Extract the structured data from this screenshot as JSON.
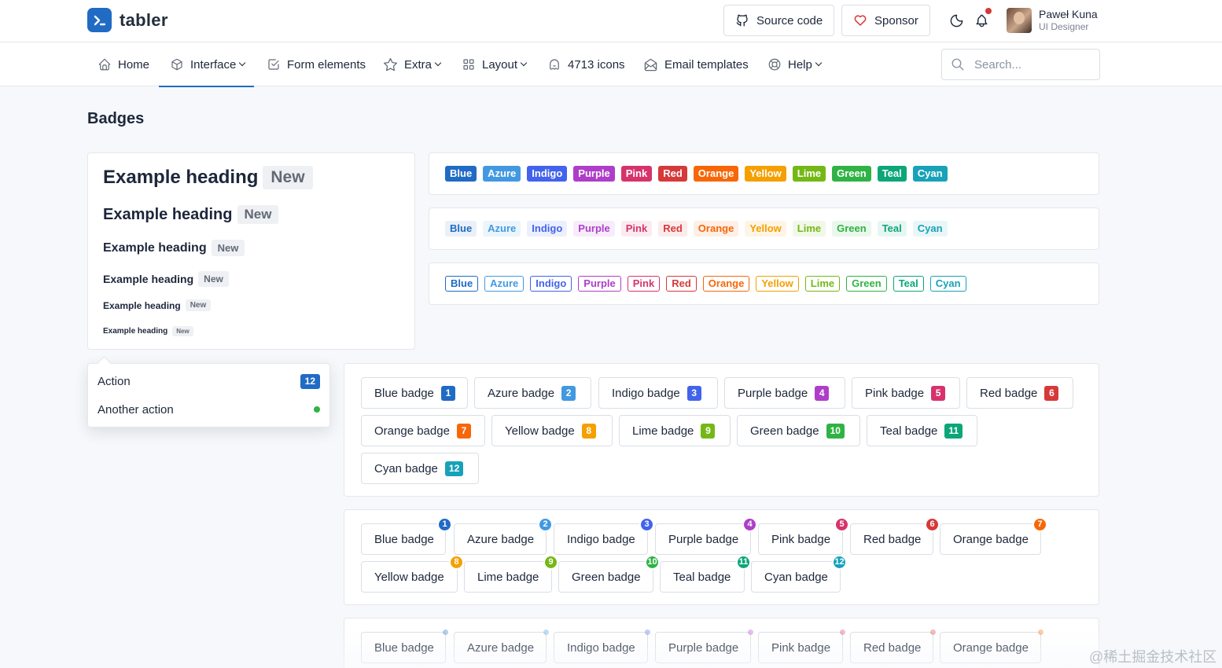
{
  "brand": {
    "name": "tabler"
  },
  "header": {
    "source_code": "Source code",
    "sponsor": "Sponsor",
    "user": {
      "name": "Paweł Kuna",
      "role": "UI Designer"
    }
  },
  "nav": {
    "items": [
      {
        "label": "Home"
      },
      {
        "label": "Interface"
      },
      {
        "label": "Form elements"
      },
      {
        "label": "Extra"
      },
      {
        "label": "Layout"
      },
      {
        "label": "4713 icons"
      },
      {
        "label": "Email templates"
      },
      {
        "label": "Help"
      }
    ],
    "search_placeholder": "Search..."
  },
  "page_title": "Badges",
  "headings": [
    {
      "text": "Example heading",
      "badge": "New"
    },
    {
      "text": "Example heading",
      "badge": "New"
    },
    {
      "text": "Example heading",
      "badge": "New"
    },
    {
      "text": "Example heading",
      "badge": "New"
    },
    {
      "text": "Example heading",
      "badge": "New"
    },
    {
      "text": "Example heading",
      "badge": "New"
    }
  ],
  "colors": [
    {
      "name": "Blue",
      "hex": "#206bc4",
      "light": "#e9f0f9"
    },
    {
      "name": "Azure",
      "hex": "#4299e1",
      "light": "#ecf5fc"
    },
    {
      "name": "Indigo",
      "hex": "#4263eb",
      "light": "#eceffd"
    },
    {
      "name": "Purple",
      "hex": "#ae3ec9",
      "light": "#f7ecfa"
    },
    {
      "name": "Pink",
      "hex": "#d6336c",
      "light": "#fbebf0"
    },
    {
      "name": "Red",
      "hex": "#d63939",
      "light": "#fbebeb"
    },
    {
      "name": "Orange",
      "hex": "#f76707",
      "light": "#fef0e6"
    },
    {
      "name": "Yellow",
      "hex": "#f59f00",
      "light": "#fef5e6"
    },
    {
      "name": "Lime",
      "hex": "#74b816",
      "light": "#f1f8e8"
    },
    {
      "name": "Green",
      "hex": "#2fb344",
      "light": "#eaf7ec"
    },
    {
      "name": "Teal",
      "hex": "#0ca678",
      "light": "#e7f6f2"
    },
    {
      "name": "Cyan",
      "hex": "#17a2b8",
      "light": "#e8f6f8"
    }
  ],
  "dropdown": {
    "items": [
      {
        "label": "Action",
        "badge": "12"
      },
      {
        "label": "Another action"
      }
    ]
  },
  "badge_buttons": [
    {
      "label": "Blue badge",
      "count": "1"
    },
    {
      "label": "Azure badge",
      "count": "2"
    },
    {
      "label": "Indigo badge",
      "count": "3"
    },
    {
      "label": "Purple badge",
      "count": "4"
    },
    {
      "label": "Pink badge",
      "count": "5"
    },
    {
      "label": "Red badge",
      "count": "6"
    },
    {
      "label": "Orange badge",
      "count": "7"
    },
    {
      "label": "Yellow badge",
      "count": "8"
    },
    {
      "label": "Lime badge",
      "count": "9"
    },
    {
      "label": "Green badge",
      "count": "10"
    },
    {
      "label": "Teal badge",
      "count": "11"
    },
    {
      "label": "Cyan badge",
      "count": "12"
    }
  ],
  "watermark": "@稀土掘金技术社区"
}
